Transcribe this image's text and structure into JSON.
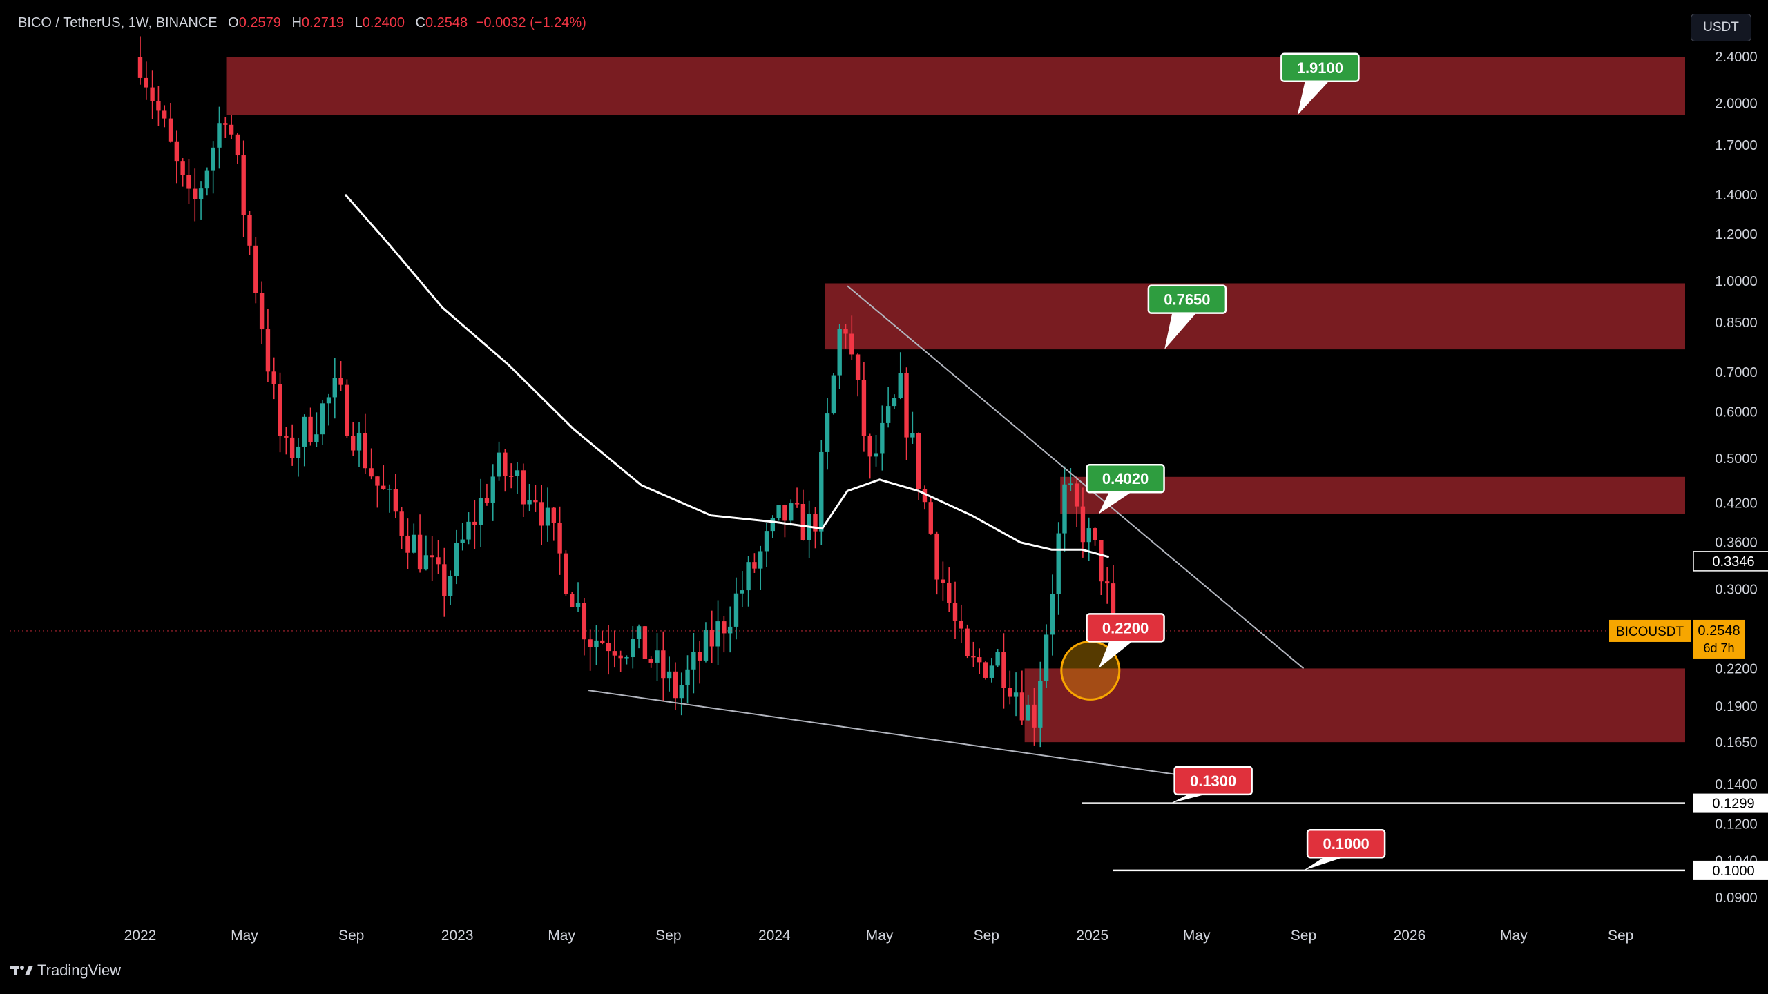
{
  "header": {
    "symbol": "BICO / TetherUS, 1W, BINANCE",
    "open_label": "O",
    "open": "0.2579",
    "high_label": "H",
    "high": "0.2719",
    "low_label": "L",
    "low": "0.2400",
    "close_label": "C",
    "close": "0.2548",
    "change": "−0.0032 (−1.24%)"
  },
  "currency_button": "USDT",
  "brand": "TradingView",
  "colors": {
    "up": "#26a69a",
    "down": "#f23645",
    "zone": "#7f1d23",
    "tag_green": "#2e9d3f",
    "tag_red": "#e0313c",
    "ma_line": "#ffffff",
    "price_tag": "#f7a600",
    "circle": "#f7a600"
  },
  "chart_data": {
    "type": "candlestick",
    "symbol": "BICOUSDT",
    "interval": "1W",
    "y_scale": "log",
    "ylim": [
      0.085,
      2.7
    ],
    "price_axis_ticks": [
      "2.4000",
      "2.0000",
      "1.7000",
      "1.4000",
      "1.2000",
      "1.0000",
      "0.8500",
      "0.7000",
      "0.6000",
      "0.5000",
      "0.4200",
      "0.3600",
      "0.3000",
      "0.2200",
      "0.1900",
      "0.1650",
      "0.1400",
      "0.1200",
      "0.1040",
      "0.0900"
    ],
    "time_axis_ticks": [
      "2022",
      "May",
      "Sep",
      "2023",
      "May",
      "Sep",
      "2024",
      "May",
      "Sep",
      "2025",
      "May",
      "Sep",
      "2026",
      "May",
      "Sep"
    ],
    "anchor_points": [
      [
        "2022-01-01",
        2.4
      ],
      [
        "2022-03-01",
        1.3
      ],
      [
        "2022-04-10",
        2.0
      ],
      [
        "2022-05-01",
        1.3
      ],
      [
        "2022-06-15",
        0.5
      ],
      [
        "2022-08-15",
        0.65
      ],
      [
        "2022-10-01",
        0.45
      ],
      [
        "2022-12-15",
        0.3
      ],
      [
        "2023-02-15",
        0.48
      ],
      [
        "2023-04-01",
        0.44
      ],
      [
        "2023-06-01",
        0.25
      ],
      [
        "2023-08-01",
        0.24
      ],
      [
        "2023-09-10",
        0.2
      ],
      [
        "2023-11-01",
        0.26
      ],
      [
        "2024-01-10",
        0.4
      ],
      [
        "2024-02-15",
        0.38
      ],
      [
        "2024-03-20",
        0.9
      ],
      [
        "2024-04-20",
        0.48
      ],
      [
        "2024-05-25",
        0.65
      ],
      [
        "2024-07-05",
        0.34
      ],
      [
        "2024-08-10",
        0.22
      ],
      [
        "2024-09-15",
        0.23
      ],
      [
        "2024-10-25",
        0.18
      ],
      [
        "2024-12-01",
        0.44
      ],
      [
        "2025-01-10",
        0.33
      ],
      [
        "2025-01-27",
        0.2548
      ]
    ],
    "moving_average": [
      [
        "2022-08-25",
        1.4
      ],
      [
        "2022-10-15",
        1.15
      ],
      [
        "2022-12-15",
        0.9
      ],
      [
        "2023-03-01",
        0.72
      ],
      [
        "2023-05-15",
        0.56
      ],
      [
        "2023-08-01",
        0.45
      ],
      [
        "2023-10-20",
        0.4
      ],
      [
        "2024-01-01",
        0.39
      ],
      [
        "2024-02-25",
        0.38
      ],
      [
        "2024-03-25",
        0.44
      ],
      [
        "2024-05-01",
        0.46
      ],
      [
        "2024-06-15",
        0.44
      ],
      [
        "2024-08-15",
        0.4
      ],
      [
        "2024-10-10",
        0.36
      ],
      [
        "2024-11-15",
        0.35
      ],
      [
        "2024-12-20",
        0.35
      ],
      [
        "2025-01-20",
        0.34
      ]
    ],
    "resistance_zones": [
      {
        "from": "2022-04-10",
        "to": "2026-11-15",
        "low": 1.91,
        "high": 2.4
      },
      {
        "from": "2024-02-28",
        "to": "2026-11-15",
        "low": 0.765,
        "high": 0.99
      },
      {
        "from": "2024-11-25",
        "to": "2026-11-15",
        "low": 0.402,
        "high": 0.465
      }
    ],
    "support_zones": [
      {
        "from": "2024-10-15",
        "to": "2026-11-15",
        "low": 0.165,
        "high": 0.22
      }
    ],
    "trend_lines": [
      {
        "points": [
          [
            "2024-03-25",
            0.98
          ],
          [
            "2025-09-01",
            0.22
          ]
        ],
        "color": "#b2b5be"
      },
      {
        "points": [
          [
            "2023-06-01",
            0.202
          ],
          [
            "2025-06-10",
            0.141
          ]
        ],
        "color": "#b2b5be"
      }
    ],
    "horizontal_levels": [
      {
        "price": 0.13,
        "from": "2024-12-20",
        "label": "0.1299"
      },
      {
        "price": 0.1,
        "from": "2025-01-25",
        "label": "0.1000"
      }
    ],
    "current_ma_value": "0.3346",
    "last_price": {
      "symbol_label": "BICOUSDT",
      "value": "0.2548",
      "countdown": "6d 7h"
    },
    "price_targets": [
      {
        "label": "1.9100",
        "price": 1.91,
        "date": "2025-08-25",
        "tag_price": 2.3,
        "tag_date": "2025-09-20",
        "color": "green"
      },
      {
        "label": "0.7650",
        "price": 0.765,
        "date": "2025-03-25",
        "tag_price": 0.93,
        "tag_date": "2025-04-20",
        "color": "green"
      },
      {
        "label": "0.4020",
        "price": 0.402,
        "date": "2025-01-08",
        "tag_price": 0.462,
        "tag_date": "2025-02-08",
        "color": "green"
      },
      {
        "label": "0.2200",
        "price": 0.22,
        "date": "2025-01-08",
        "tag_price": 0.258,
        "tag_date": "2025-02-08",
        "color": "red"
      },
      {
        "label": "0.1300",
        "price": 0.13,
        "date": "2025-04-01",
        "tag_price": 0.142,
        "tag_date": "2025-05-20",
        "color": "red"
      },
      {
        "label": "0.1000",
        "price": 0.1,
        "date": "2025-09-01",
        "tag_price": 0.111,
        "tag_date": "2025-10-20",
        "color": "red"
      }
    ],
    "highlight_circle": {
      "date": "2025-01-05",
      "price": 0.22
    }
  }
}
